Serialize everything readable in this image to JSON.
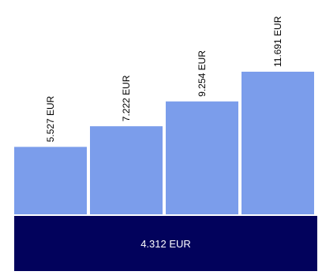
{
  "chart_data": {
    "type": "bar",
    "series": [
      {
        "values": [
          5527,
          7222,
          9254,
          11691
        ],
        "labels": [
          "5.527 EUR",
          "7.222 EUR",
          "9.254 EUR",
          "11.691 EUR"
        ]
      }
    ],
    "base": {
      "value": 4312,
      "label": "4.312 EUR"
    },
    "grid": false,
    "legend": "none"
  },
  "colors": {
    "bar": "#7b9deb",
    "base": "#02025c"
  }
}
